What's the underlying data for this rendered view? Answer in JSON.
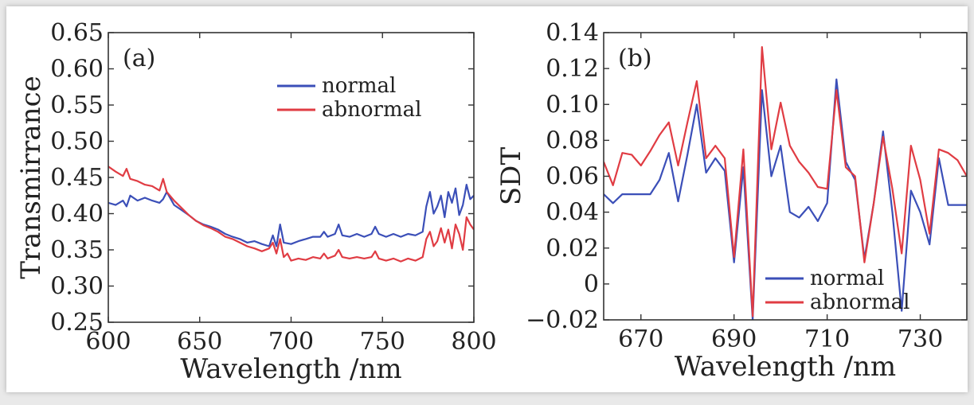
{
  "chart_data": [
    {
      "type": "line",
      "panel_label": "(a)",
      "xlabel": "Wavelength /nm",
      "ylabel": "Transmirrance",
      "xlim": [
        600,
        800
      ],
      "ylim": [
        0.25,
        0.65
      ],
      "xticks": [
        600,
        650,
        700,
        750,
        800
      ],
      "xtick_labels": [
        "600",
        "650",
        "700",
        "750",
        "800"
      ],
      "yticks": [
        0.25,
        0.3,
        0.35,
        0.4,
        0.45,
        0.5,
        0.55,
        0.6,
        0.65
      ],
      "ytick_labels": [
        "0.25",
        "0.30",
        "0.35",
        "0.40",
        "0.45",
        "0.50",
        "0.55",
        "0.60",
        "0.65"
      ],
      "legend_position": "top-right",
      "series": [
        {
          "name": "normal",
          "color": "#3b4fb8",
          "x": [
            600,
            604,
            608,
            610,
            612,
            616,
            620,
            624,
            628,
            630,
            632,
            636,
            640,
            644,
            648,
            652,
            656,
            660,
            664,
            668,
            672,
            676,
            680,
            684,
            688,
            690,
            692,
            694,
            696,
            700,
            704,
            708,
            712,
            716,
            718,
            720,
            724,
            726,
            728,
            732,
            736,
            740,
            744,
            746,
            748,
            752,
            756,
            760,
            764,
            768,
            772,
            774,
            776,
            778,
            780,
            782,
            784,
            786,
            788,
            790,
            792,
            794,
            796,
            798,
            800
          ],
          "values": [
            0.415,
            0.412,
            0.418,
            0.41,
            0.425,
            0.418,
            0.422,
            0.418,
            0.415,
            0.42,
            0.43,
            0.412,
            0.405,
            0.398,
            0.39,
            0.385,
            0.382,
            0.378,
            0.372,
            0.368,
            0.365,
            0.36,
            0.362,
            0.358,
            0.355,
            0.37,
            0.355,
            0.385,
            0.36,
            0.358,
            0.362,
            0.365,
            0.368,
            0.368,
            0.375,
            0.368,
            0.372,
            0.385,
            0.37,
            0.368,
            0.372,
            0.368,
            0.372,
            0.382,
            0.372,
            0.368,
            0.372,
            0.368,
            0.372,
            0.37,
            0.375,
            0.41,
            0.43,
            0.4,
            0.41,
            0.425,
            0.395,
            0.43,
            0.415,
            0.435,
            0.398,
            0.412,
            0.44,
            0.42,
            0.425
          ]
        },
        {
          "name": "abnormal",
          "color": "#e03c43",
          "x": [
            600,
            604,
            608,
            610,
            612,
            616,
            620,
            624,
            628,
            630,
            632,
            636,
            640,
            644,
            648,
            652,
            656,
            660,
            664,
            668,
            672,
            676,
            680,
            684,
            688,
            690,
            692,
            694,
            696,
            698,
            700,
            704,
            708,
            712,
            716,
            718,
            720,
            724,
            726,
            728,
            732,
            736,
            740,
            744,
            746,
            748,
            752,
            756,
            760,
            764,
            768,
            772,
            774,
            776,
            778,
            780,
            782,
            784,
            786,
            788,
            790,
            792,
            794,
            796,
            798,
            800
          ],
          "values": [
            0.465,
            0.458,
            0.452,
            0.462,
            0.448,
            0.445,
            0.44,
            0.438,
            0.432,
            0.448,
            0.43,
            0.418,
            0.408,
            0.398,
            0.39,
            0.384,
            0.38,
            0.375,
            0.368,
            0.365,
            0.36,
            0.355,
            0.352,
            0.348,
            0.352,
            0.36,
            0.345,
            0.365,
            0.34,
            0.345,
            0.335,
            0.338,
            0.336,
            0.34,
            0.338,
            0.345,
            0.338,
            0.342,
            0.35,
            0.34,
            0.338,
            0.34,
            0.338,
            0.34,
            0.348,
            0.338,
            0.335,
            0.338,
            0.334,
            0.338,
            0.335,
            0.34,
            0.365,
            0.375,
            0.355,
            0.362,
            0.38,
            0.36,
            0.378,
            0.352,
            0.385,
            0.372,
            0.35,
            0.395,
            0.385,
            0.378
          ]
        }
      ]
    },
    {
      "type": "line",
      "panel_label": "(b)",
      "xlabel": "Wavelength /nm",
      "ylabel": "SDT",
      "xlim": [
        662,
        740
      ],
      "ylim": [
        -0.02,
        0.14
      ],
      "xticks": [
        670,
        690,
        710,
        730
      ],
      "xtick_labels": [
        "670",
        "690",
        "710",
        "730"
      ],
      "yticks": [
        -0.02,
        0,
        0.02,
        0.04,
        0.06,
        0.08,
        0.1,
        0.12,
        0.14
      ],
      "ytick_labels": [
        "−0.02",
        "0",
        "0.02",
        "0.04",
        "0.06",
        "0.08",
        "0.10",
        "0.12",
        "0.14"
      ],
      "legend_position": "bottom-center",
      "series": [
        {
          "name": "normal",
          "color": "#3b4fb8",
          "x": [
            662,
            664,
            666,
            668,
            670,
            672,
            674,
            676,
            678,
            680,
            682,
            684,
            686,
            688,
            690,
            692,
            694,
            696,
            698,
            700,
            702,
            704,
            706,
            708,
            710,
            712,
            714,
            716,
            718,
            720,
            722,
            724,
            726,
            728,
            730,
            732,
            734,
            736,
            738,
            740
          ],
          "values": [
            0.05,
            0.045,
            0.05,
            0.05,
            0.05,
            0.05,
            0.058,
            0.073,
            0.046,
            0.072,
            0.1,
            0.062,
            0.07,
            0.063,
            0.012,
            0.065,
            -0.02,
            0.108,
            0.06,
            0.077,
            0.04,
            0.037,
            0.043,
            0.035,
            0.045,
            0.114,
            0.068,
            0.058,
            0.014,
            0.045,
            0.085,
            0.04,
            -0.015,
            0.052,
            0.04,
            0.022,
            0.07,
            0.044,
            0.044,
            0.044
          ]
        },
        {
          "name": "abnormal",
          "color": "#e03c43",
          "x": [
            662,
            664,
            666,
            668,
            670,
            672,
            674,
            676,
            678,
            680,
            682,
            684,
            686,
            688,
            690,
            692,
            694,
            696,
            698,
            700,
            702,
            704,
            706,
            708,
            710,
            712,
            714,
            716,
            718,
            720,
            722,
            724,
            726,
            728,
            730,
            732,
            734,
            736,
            738,
            740
          ],
          "values": [
            0.068,
            0.055,
            0.073,
            0.072,
            0.066,
            0.074,
            0.083,
            0.09,
            0.066,
            0.09,
            0.113,
            0.07,
            0.077,
            0.07,
            0.015,
            0.075,
            -0.018,
            0.132,
            0.075,
            0.101,
            0.077,
            0.068,
            0.062,
            0.054,
            0.053,
            0.108,
            0.065,
            0.06,
            0.012,
            0.045,
            0.082,
            0.053,
            0.017,
            0.077,
            0.058,
            0.028,
            0.075,
            0.073,
            0.069,
            0.06
          ]
        }
      ]
    }
  ]
}
